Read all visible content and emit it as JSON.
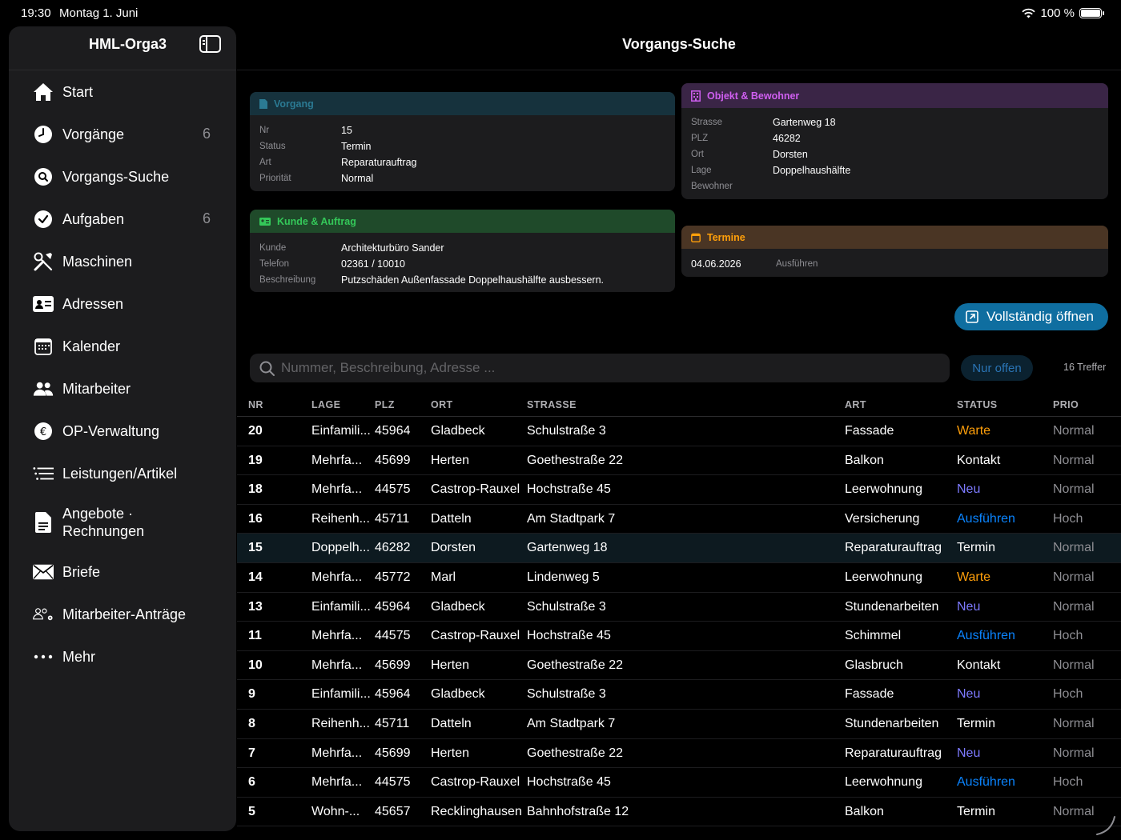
{
  "status_bar": {
    "time": "19:30",
    "date": "Montag 1. Juni",
    "battery": "100 %"
  },
  "sidebar": {
    "title": "HML-Orga3",
    "items": [
      {
        "label": "Start",
        "icon": "house-icon",
        "badge": ""
      },
      {
        "label": "Vorgänge",
        "icon": "clock-icon",
        "badge": "6"
      },
      {
        "label": "Vorgangs-Suche",
        "icon": "search-circle-icon",
        "badge": ""
      },
      {
        "label": "Aufgaben",
        "icon": "checkmark-circle-icon",
        "badge": "6"
      },
      {
        "label": "Maschinen",
        "icon": "tools-icon",
        "badge": ""
      },
      {
        "label": "Adressen",
        "icon": "contact-card-icon",
        "badge": ""
      },
      {
        "label": "Kalender",
        "icon": "calendar-icon",
        "badge": ""
      },
      {
        "label": "Mitarbeiter",
        "icon": "people-icon",
        "badge": ""
      },
      {
        "label": "OP-Verwaltung",
        "icon": "euro-circle-icon",
        "badge": ""
      },
      {
        "label": "Leistungen/Artikel",
        "icon": "list-icon",
        "badge": ""
      },
      {
        "label": "Angebote · Rechnungen",
        "icon": "document-icon",
        "badge": ""
      },
      {
        "label": "Briefe",
        "icon": "envelope-icon",
        "badge": ""
      },
      {
        "label": "Mitarbeiter-Anträge",
        "icon": "people-gear-icon",
        "badge": ""
      },
      {
        "label": "Mehr",
        "icon": "ellipsis-icon",
        "badge": ""
      }
    ]
  },
  "main": {
    "title": "Vorgangs-Suche",
    "vorgang": {
      "header": "Vorgang",
      "fields": [
        {
          "k": "Nr",
          "v": "15"
        },
        {
          "k": "Status",
          "v": "Termin"
        },
        {
          "k": "Art",
          "v": "Reparaturauftrag"
        },
        {
          "k": "Priorität",
          "v": "Normal"
        }
      ]
    },
    "kunde": {
      "header": "Kunde & Auftrag",
      "fields": [
        {
          "k": "Kunde",
          "v": "Architekturbüro Sander"
        },
        {
          "k": "Telefon",
          "v": "02361 / 10010"
        },
        {
          "k": "Beschreibung",
          "v": "Putzschäden Außenfassade Doppelhaushälfte ausbessern."
        }
      ]
    },
    "objekt": {
      "header": "Objekt & Bewohner",
      "fields": [
        {
          "k": "Strasse",
          "v": "Gartenweg 18"
        },
        {
          "k": "PLZ",
          "v": "46282"
        },
        {
          "k": "Ort",
          "v": "Dorsten"
        },
        {
          "k": "Lage",
          "v": "Doppelhaushälfte"
        },
        {
          "k": "Bewohner",
          "v": ""
        }
      ]
    },
    "termine": {
      "header": "Termine",
      "date": "04.06.2026",
      "action": "Ausführen"
    },
    "open_button": "Vollständig öffnen",
    "search_placeholder": "Nummer, Beschreibung, Adresse ...",
    "filter_button": "Nur offen",
    "result_count": "16 Treffer",
    "table": {
      "columns": [
        "NR",
        "LAGE",
        "PLZ",
        "ORT",
        "STRASSE",
        "ART",
        "STATUS",
        "PRIO"
      ],
      "rows": [
        {
          "nr": "20",
          "lage": "Einfamili...",
          "plz": "45964",
          "ort": "Gladbeck",
          "strasse": "Schulstraße 3",
          "art": "Fassade",
          "status": "Warte",
          "prio": "Normal"
        },
        {
          "nr": "19",
          "lage": "Mehrfa...",
          "plz": "45699",
          "ort": "Herten",
          "strasse": "Goethestraße 22",
          "art": "Balkon",
          "status": "Kontakt",
          "prio": "Normal"
        },
        {
          "nr": "18",
          "lage": "Mehrfa...",
          "plz": "44575",
          "ort": "Castrop-Rauxel",
          "strasse": "Hochstraße 45",
          "art": "Leerwohnung",
          "status": "Neu",
          "prio": "Normal"
        },
        {
          "nr": "16",
          "lage": "Reihenh...",
          "plz": "45711",
          "ort": "Datteln",
          "strasse": "Am Stadtpark 7",
          "art": "Versicherung",
          "status": "Ausführen",
          "prio": "Hoch"
        },
        {
          "nr": "15",
          "lage": "Doppelh...",
          "plz": "46282",
          "ort": "Dorsten",
          "strasse": "Gartenweg 18",
          "art": "Reparaturauftrag",
          "status": "Termin",
          "prio": "Normal"
        },
        {
          "nr": "14",
          "lage": "Mehrfa...",
          "plz": "45772",
          "ort": "Marl",
          "strasse": "Lindenweg 5",
          "art": "Leerwohnung",
          "status": "Warte",
          "prio": "Normal"
        },
        {
          "nr": "13",
          "lage": "Einfamili...",
          "plz": "45964",
          "ort": "Gladbeck",
          "strasse": "Schulstraße 3",
          "art": "Stundenarbeiten",
          "status": "Neu",
          "prio": "Normal"
        },
        {
          "nr": "11",
          "lage": "Mehrfa...",
          "plz": "44575",
          "ort": "Castrop-Rauxel",
          "strasse": "Hochstraße 45",
          "art": "Schimmel",
          "status": "Ausführen",
          "prio": "Hoch"
        },
        {
          "nr": "10",
          "lage": "Mehrfa...",
          "plz": "45699",
          "ort": "Herten",
          "strasse": "Goethestraße 22",
          "art": "Glasbruch",
          "status": "Kontakt",
          "prio": "Normal"
        },
        {
          "nr": "9",
          "lage": "Einfamili...",
          "plz": "45964",
          "ort": "Gladbeck",
          "strasse": "Schulstraße 3",
          "art": "Fassade",
          "status": "Neu",
          "prio": "Hoch"
        },
        {
          "nr": "8",
          "lage": "Reihenh...",
          "plz": "45711",
          "ort": "Datteln",
          "strasse": "Am Stadtpark 7",
          "art": "Stundenarbeiten",
          "status": "Termin",
          "prio": "Normal"
        },
        {
          "nr": "7",
          "lage": "Mehrfa...",
          "plz": "45699",
          "ort": "Herten",
          "strasse": "Goethestraße 22",
          "art": "Reparaturauftrag",
          "status": "Neu",
          "prio": "Normal"
        },
        {
          "nr": "6",
          "lage": "Mehrfa...",
          "plz": "44575",
          "ort": "Castrop-Rauxel",
          "strasse": "Hochstraße 45",
          "art": "Leerwohnung",
          "status": "Ausführen",
          "prio": "Hoch"
        },
        {
          "nr": "5",
          "lage": "Wohn-...",
          "plz": "45657",
          "ort": "Recklinghausen",
          "strasse": "Bahnhofstraße 12",
          "art": "Balkon",
          "status": "Termin",
          "prio": "Normal"
        }
      ],
      "selected_nr": "15"
    },
    "status_colors": {
      "Warte": "#ff9f0a",
      "Neu": "#7d7aff",
      "Ausführen": "#0a84ff",
      "Kontakt": "#ffffff",
      "Termin": "#ffffff"
    }
  }
}
